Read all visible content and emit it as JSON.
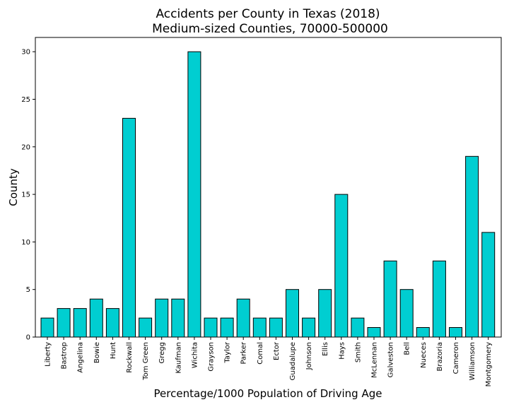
{
  "chart_data": {
    "type": "bar",
    "title": "Accidents per County in Texas (2018)",
    "subtitle": "Medium-sized Counties, 70000-500000",
    "xlabel": "Percentage/1000 Population of Driving Age",
    "ylabel": "County",
    "categories": [
      "Liberty",
      "Bastrop",
      "Angelina",
      "Bowie",
      "Hunt",
      "Rockwall",
      "Tom Green",
      "Gregg",
      "Kaufman",
      "Wichita",
      "Grayson",
      "Taylor",
      "Parker",
      "Comal",
      "Ector",
      "Guadalupe",
      "Johnson",
      "Ellis",
      "Hays",
      "Smith",
      "McLennan",
      "Galveston",
      "Bell",
      "Nueces",
      "Brazoria",
      "Cameron",
      "Williamson",
      "Montgomery"
    ],
    "values": [
      2,
      3,
      3,
      4,
      3,
      23,
      2,
      4,
      4,
      30,
      2,
      2,
      4,
      2,
      2,
      5,
      2,
      5,
      15,
      2,
      1,
      8,
      5,
      1,
      8,
      1,
      19,
      11
    ],
    "ylim": [
      0,
      31.5
    ],
    "yticks": [
      0,
      5,
      10,
      15,
      20,
      25,
      30
    ],
    "grid": false,
    "colors": {
      "bar": "#00ced1",
      "edge": "#000000"
    }
  }
}
